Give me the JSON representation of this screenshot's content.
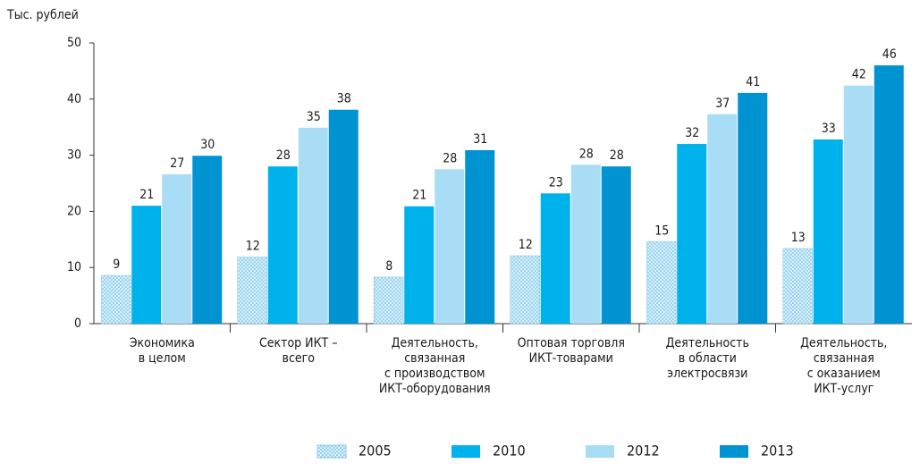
{
  "chart_data": {
    "type": "bar",
    "y_label": "Тыс. рублей",
    "categories": [
      [
        "Экономика",
        "в целом"
      ],
      [
        "Сектор ИКТ –",
        "всего"
      ],
      [
        "Деятельность,",
        "связанная",
        "с производством",
        "ИКТ-оборудования"
      ],
      [
        "Оптовая торговля",
        "ИКТ-товарами"
      ],
      [
        "Деятельность",
        "в области",
        "электросвязи"
      ],
      [
        "Деятельность,",
        "связанная",
        "с оказанием",
        "ИКТ-услуг"
      ]
    ],
    "series": [
      {
        "name": "2005",
        "color": "#d6eef9",
        "pattern": "dotted",
        "values": [
          8.6,
          11.9,
          8.3,
          12.1,
          14.6,
          13.4
        ],
        "value_labels": [
          "9",
          "12",
          "8",
          "12",
          "15",
          "13"
        ]
      },
      {
        "name": "2010",
        "color": "#00b2ec",
        "values": [
          21.0,
          28.0,
          20.9,
          23.2,
          32.0,
          32.8
        ],
        "value_labels": [
          "21",
          "28",
          "21",
          "23",
          "32",
          "33"
        ]
      },
      {
        "name": "2012",
        "color": "#a9ddf6",
        "values": [
          26.6,
          34.9,
          27.5,
          28.3,
          37.3,
          42.4
        ],
        "value_labels": [
          "27",
          "35",
          "28",
          "28",
          "37",
          "42"
        ]
      },
      {
        "name": "2013",
        "color": "#0093d2",
        "values": [
          29.9,
          38.1,
          30.9,
          28.0,
          41.1,
          46.0
        ],
        "value_labels": [
          "30",
          "38",
          "31",
          "28",
          "41",
          "46"
        ]
      }
    ],
    "ylim": [
      0,
      50
    ],
    "yticks": [
      0,
      10,
      20,
      30,
      40,
      50
    ],
    "grid": false,
    "legend": "bottom"
  }
}
